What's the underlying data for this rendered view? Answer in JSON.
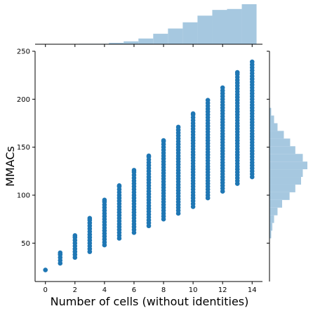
{
  "chart_data": {
    "type": "scatter",
    "title": "",
    "xlabel": "Number of cells (without identities)",
    "ylabel": "MMACs",
    "xlim": [
      -0.7,
      14.7
    ],
    "ylim": [
      10,
      250
    ],
    "x_ticks": [
      0,
      2,
      4,
      6,
      8,
      10,
      12,
      14
    ],
    "y_ticks": [
      50,
      100,
      150,
      200,
      250
    ],
    "grid": false,
    "colors": {
      "points": "#1f77b4",
      "hist": "#a6c8e0"
    },
    "scatter_ranges": [
      {
        "x": 0,
        "ymin": 22,
        "ymax": 22
      },
      {
        "x": 1,
        "ymin": 29,
        "ymax": 40
      },
      {
        "x": 2,
        "ymin": 35,
        "ymax": 58
      },
      {
        "x": 3,
        "ymin": 41,
        "ymax": 76
      },
      {
        "x": 4,
        "ymin": 48,
        "ymax": 95
      },
      {
        "x": 5,
        "ymin": 55,
        "ymax": 110
      },
      {
        "x": 6,
        "ymin": 61,
        "ymax": 126
      },
      {
        "x": 7,
        "ymin": 68,
        "ymax": 141
      },
      {
        "x": 8,
        "ymin": 75,
        "ymax": 157
      },
      {
        "x": 9,
        "ymin": 81,
        "ymax": 171
      },
      {
        "x": 10,
        "ymin": 88,
        "ymax": 185
      },
      {
        "x": 11,
        "ymin": 97,
        "ymax": 199
      },
      {
        "x": 12,
        "ymin": 104,
        "ymax": 212
      },
      {
        "x": 13,
        "ymin": 112,
        "ymax": 228
      },
      {
        "x": 14,
        "ymin": 119,
        "ymax": 239
      }
    ],
    "x_marginal_hist": {
      "bin_edges": [
        -0.7,
        0.3,
        1.3,
        2.3,
        3.3,
        4.3,
        5.3,
        6.3,
        7.3,
        8.3,
        9.3,
        10.3,
        11.3,
        12.3,
        13.3,
        14.3
      ],
      "relative_heights": [
        0.0,
        0.0,
        0.0,
        0.01,
        0.01,
        0.03,
        0.06,
        0.12,
        0.22,
        0.33,
        0.46,
        0.6,
        0.72,
        0.74,
        0.84
      ]
    },
    "y_marginal_hist": {
      "bin_edges": [
        55,
        63,
        71,
        79,
        87,
        95,
        103,
        111,
        119,
        127,
        135,
        143,
        151,
        159,
        167,
        175,
        183,
        191
      ],
      "relative_widths": [
        0.03,
        0.05,
        0.08,
        0.14,
        0.22,
        0.35,
        0.45,
        0.55,
        0.58,
        0.66,
        0.58,
        0.45,
        0.36,
        0.25,
        0.14,
        0.08,
        0.03
      ]
    }
  }
}
